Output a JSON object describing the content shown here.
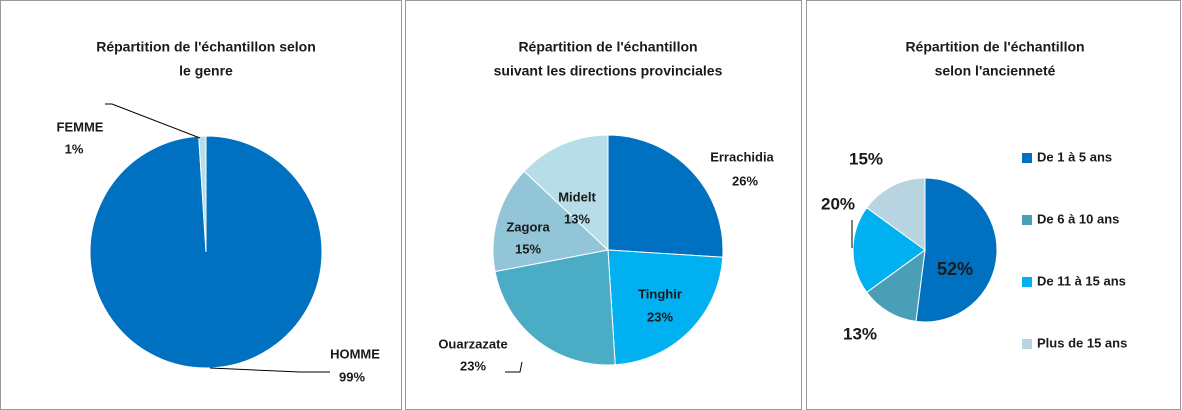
{
  "chart_data": [
    {
      "type": "pie",
      "title": [
        "Répartition de l'échantillon selon",
        "le genre"
      ],
      "categories": [
        "HOMME",
        "FEMME"
      ],
      "values": [
        99,
        1
      ],
      "value_labels": [
        "99%",
        "1%"
      ],
      "colors": [
        "#0070c0",
        "#b7dde8"
      ]
    },
    {
      "type": "pie",
      "title": [
        "Répartition de l'échantillon",
        "suivant les directions provinciales"
      ],
      "categories": [
        "Errachidia",
        "Tinghir",
        "Ouarzazate",
        "Zagora",
        "Midelt"
      ],
      "values": [
        26,
        23,
        23,
        15,
        13
      ],
      "value_labels": [
        "26%",
        "23%",
        "23%",
        "15%",
        "13%"
      ],
      "colors": [
        "#0070c0",
        "#00b0f0",
        "#4bacc6",
        "#92c5d8",
        "#b7dde8"
      ]
    },
    {
      "type": "pie",
      "title": [
        "Répartition de l'échantillon",
        "selon l'ancienneté"
      ],
      "categories": [
        "De 1 à 5 ans",
        "De 6 à 10 ans",
        "De 11 à 15 ans",
        "Plus de 15 ans"
      ],
      "values": [
        52,
        13,
        20,
        15
      ],
      "value_labels": [
        "52%",
        "13%",
        "20%",
        "15%"
      ],
      "colors": [
        "#0070c0",
        "#4a9eb5",
        "#00b0f0",
        "#b7d4e0"
      ],
      "legend": "right"
    }
  ]
}
